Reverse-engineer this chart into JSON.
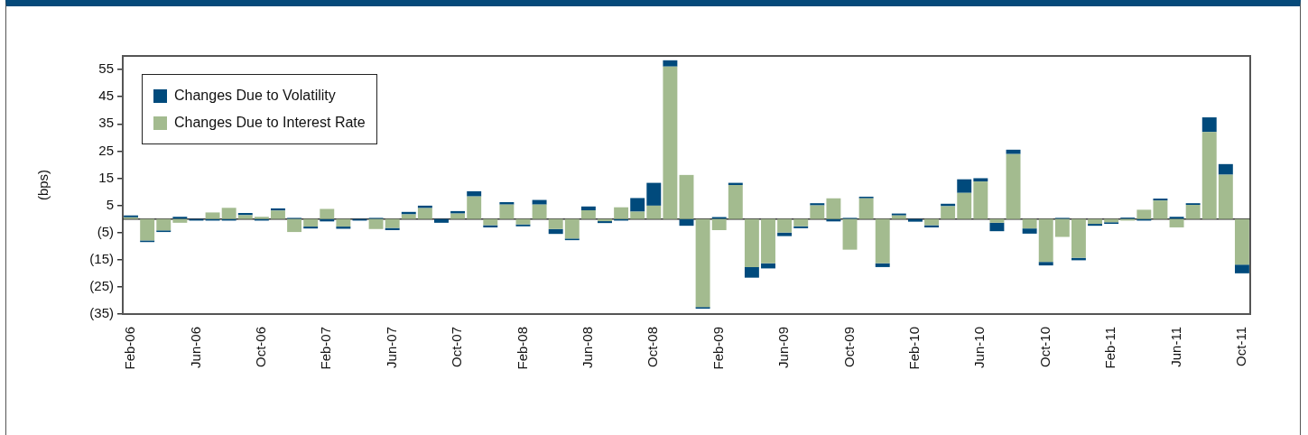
{
  "chart_data": {
    "type": "bar",
    "stacked": true,
    "ylabel": "(bps)",
    "legend": "top left",
    "categories": [
      "Feb-06",
      null,
      null,
      null,
      "Jun-06",
      null,
      null,
      null,
      "Oct-06",
      null,
      null,
      null,
      "Feb-07",
      null,
      null,
      null,
      "Jun-07",
      null,
      null,
      null,
      "Oct-07",
      null,
      null,
      null,
      "Feb-08",
      null,
      null,
      null,
      "Jun-08",
      null,
      null,
      null,
      "Oct-08",
      null,
      null,
      null,
      "Feb-09",
      null,
      null,
      null,
      "Jun-09",
      null,
      null,
      null,
      "Oct-09",
      null,
      null,
      null,
      "Feb-10",
      null,
      null,
      null,
      "Jun-10",
      null,
      null,
      null,
      "Oct-10",
      null,
      null,
      null,
      "Feb-11",
      null,
      null,
      null,
      "Jun-11",
      null,
      null,
      null,
      "Oct-11"
    ],
    "series": [
      {
        "name": "Changes Due to Interest Rate",
        "color": "#a3bb8f",
        "values": [
          0.6,
          -7.9,
          -4.2,
          -1.4,
          0,
          2.4,
          4.1,
          1.4,
          0.8,
          3.1,
          -4.8,
          -2.8,
          3.7,
          -2.8,
          0,
          -3.7,
          -3.3,
          1.7,
          4.0,
          0,
          2.0,
          8.3,
          -2.3,
          5.3,
          -2.0,
          5.3,
          -3.7,
          -7.2,
          3.2,
          -0.8,
          4.3,
          2.7,
          4.9,
          56.1,
          16.2,
          -32.4,
          -4.1,
          12.5,
          -17.7,
          -16.3,
          -5.0,
          -2.7,
          5.0,
          7.6,
          -11.3,
          7.6,
          -16.3,
          1.3,
          0,
          -2.3,
          4.7,
          9.6,
          13.8,
          -1.4,
          23.9,
          -3.5,
          -15.8,
          -6.6,
          -14.3,
          -1.8,
          -1.2,
          -0.6,
          3.4,
          6.8,
          -3.1,
          5.2,
          32.0,
          16.3,
          -16.8
        ]
      },
      {
        "name": "Changes Due to Volatility",
        "color": "#004a7c",
        "values": [
          0.7,
          -0.6,
          -0.6,
          0.8,
          -0.6,
          -0.6,
          -0.6,
          0.8,
          -0.6,
          0.8,
          0.4,
          -0.7,
          -0.9,
          -0.8,
          -0.6,
          0.4,
          -0.8,
          0.9,
          0.9,
          -1.4,
          0.9,
          1.9,
          -0.8,
          0.9,
          -0.7,
          1.7,
          -1.8,
          -0.6,
          1.4,
          -0.7,
          -0.6,
          5.0,
          8.4,
          2.3,
          -2.5,
          -0.6,
          0.7,
          0.8,
          -3.9,
          -1.9,
          -1.3,
          -0.7,
          0.8,
          -0.9,
          0.4,
          0.6,
          -1.4,
          0.7,
          -1.0,
          -0.8,
          0.9,
          5.0,
          1.2,
          -3.1,
          1.6,
          -1.9,
          -1.3,
          0.4,
          -0.9,
          -0.7,
          -0.6,
          0.5,
          -0.6,
          0.7,
          0.8,
          0.6,
          5.4,
          3.9,
          -3.2
        ]
      }
    ],
    "ylim": [
      -35,
      60
    ],
    "yticks": [
      {
        "value": -35,
        "label": "(35)"
      },
      {
        "value": -25,
        "label": "(25)"
      },
      {
        "value": -15,
        "label": "(15)"
      },
      {
        "value": -5,
        "label": "(5)"
      },
      5,
      15,
      25,
      35,
      45,
      55
    ]
  }
}
